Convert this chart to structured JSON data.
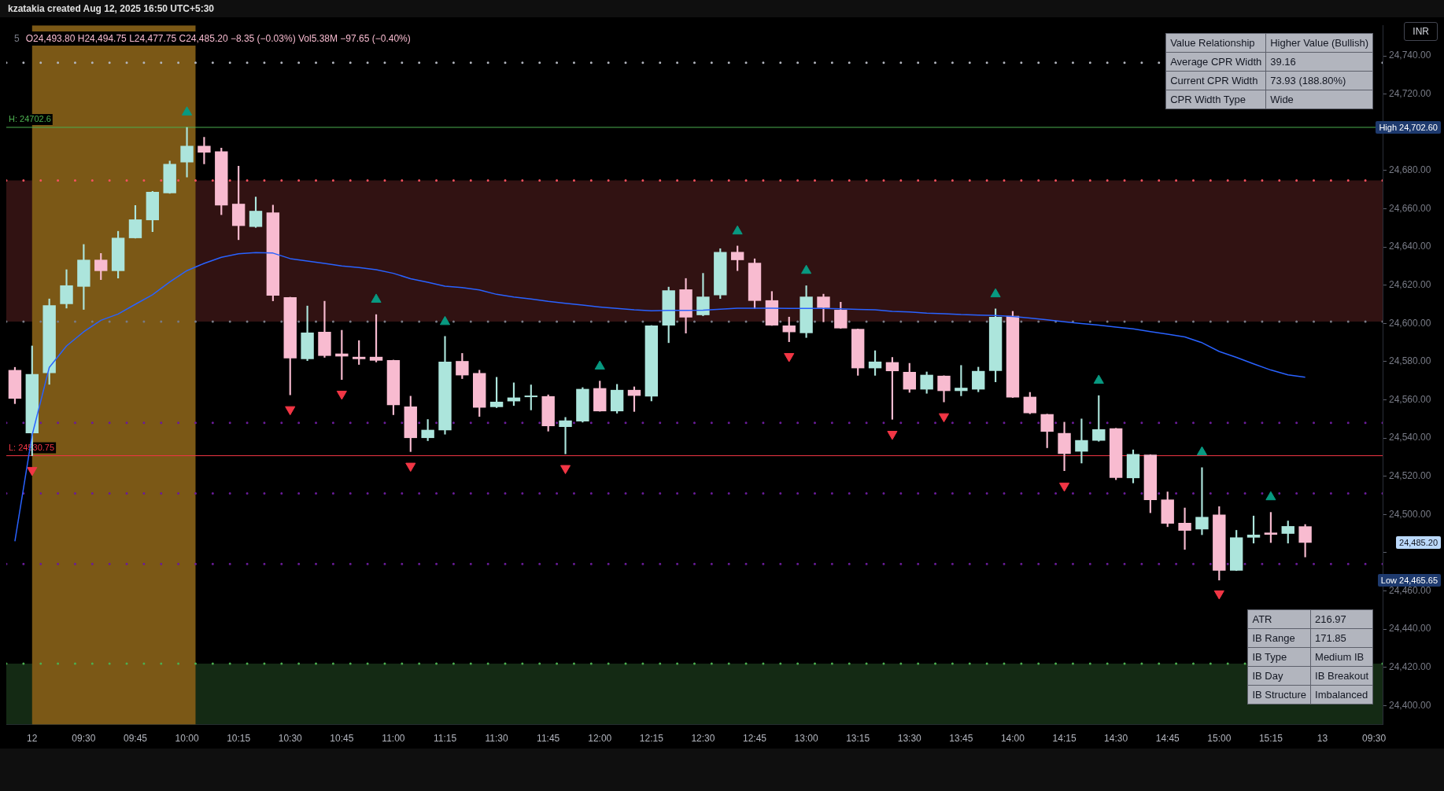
{
  "chart_data": {
    "type": "candlestick",
    "title": "5",
    "subtitle": "O24,493.80 H24,494.75 L24,477.75 C24,485.20 −8.35 (−0.03%) Vol5.38M −97.65 (−0.40%)",
    "categories": [
      null,
      "12",
      null,
      null,
      "09:30",
      null,
      null,
      "09:45",
      null,
      null,
      "10:00",
      null,
      null,
      "10:15",
      null,
      null,
      "10:30",
      null,
      null,
      "10:45",
      null,
      null,
      "11:00",
      null,
      null,
      "11:15",
      null,
      null,
      "11:30",
      null,
      null,
      "11:45",
      null,
      null,
      "12:00",
      null,
      null,
      "12:15",
      null,
      null,
      "12:30",
      null,
      null,
      "12:45",
      null,
      null,
      "13:00",
      null,
      null,
      "13:15",
      null,
      null,
      "13:30",
      null,
      null,
      "13:45",
      null,
      null,
      "14:00",
      null,
      null,
      "14:15",
      null,
      null,
      "14:30",
      null,
      null,
      "14:45",
      null,
      null,
      "15:00",
      null,
      null,
      "15:15",
      null,
      null,
      "13",
      null,
      null,
      "09:30"
    ],
    "ohlc": [
      [
        24575.6,
        24577,
        24558,
        24560.6
      ],
      [
        24542.5,
        24588.2,
        24530.75,
        24573.5
      ],
      [
        24574.0,
        24612.8,
        24568.1,
        24609.5
      ],
      [
        24610.1,
        24628.1,
        24608.0,
        24619.9
      ],
      [
        24619.2,
        24641.3,
        24607.3,
        24633.3
      ],
      [
        24633.3,
        24636.6,
        24622.9,
        24627.4
      ],
      [
        24627.4,
        24648.2,
        24623.7,
        24644.8
      ],
      [
        24644.6,
        24661.7,
        24644.6,
        24654.4
      ],
      [
        24654.0,
        24669.1,
        24648.0,
        24668.8
      ],
      [
        24668.1,
        24685.0,
        24668.1,
        24683.5
      ],
      [
        24684.3,
        24702.6,
        24676.6,
        24692.9
      ],
      [
        24692.9,
        24697.4,
        24683.5,
        24689.4
      ],
      [
        24690.0,
        24691.7,
        24656.9,
        24661.7
      ],
      [
        24662.6,
        24682.3,
        24643.8,
        24651.0
      ],
      [
        24650.5,
        24666.1,
        24650.2,
        24658.9
      ],
      [
        24658.0,
        24661.9,
        24611.8,
        24614.5
      ],
      [
        24613.7,
        24613.7,
        24562.6,
        24581.7
      ],
      [
        24581.3,
        24609.1,
        24580.5,
        24595.2
      ],
      [
        24595.6,
        24611.6,
        24582.2,
        24583.0
      ],
      [
        24584.2,
        24596.4,
        24570.6,
        24582.7
      ],
      [
        24582.5,
        24591.0,
        24578.5,
        24581.3
      ],
      [
        24582.5,
        24604.6,
        24579.8,
        24580.5
      ],
      [
        24580.8,
        24580.8,
        24552.2,
        24557.2
      ],
      [
        24556.5,
        24561.9,
        24532.9,
        24540.0
      ],
      [
        24540.0,
        24549.7,
        24538.6,
        24544.3
      ],
      [
        24544.0,
        24593.2,
        24542.0,
        24580.0
      ],
      [
        24580.3,
        24584.3,
        24571.1,
        24572.8
      ],
      [
        24574.0,
        24575.5,
        24551.3,
        24555.9
      ],
      [
        24556.2,
        24571.8,
        24555.9,
        24559.0
      ],
      [
        24559.2,
        24568.9,
        24557.0,
        24561.2
      ],
      [
        24561.4,
        24567.8,
        24554.7,
        24561.6
      ],
      [
        24561.9,
        24562.6,
        24543.6,
        24546.2
      ],
      [
        24545.8,
        24550.8,
        24531.7,
        24549.2
      ],
      [
        24548.7,
        24566.4,
        24548.3,
        24565.7
      ],
      [
        24566.1,
        24569.8,
        24554.0,
        24554.0
      ],
      [
        24554.0,
        24568.1,
        24553.0,
        24565.2
      ],
      [
        24565.2,
        24566.8,
        24553.9,
        24562.1
      ],
      [
        24561.7,
        24598.9,
        24559.4,
        24598.9
      ],
      [
        24598.9,
        24619.0,
        24589.9,
        24617.3
      ],
      [
        24617.8,
        24623.5,
        24594.9,
        24603.1
      ],
      [
        24604.3,
        24626.2,
        24604.0,
        24614.0
      ],
      [
        24614.7,
        24639.1,
        24613.0,
        24637.4
      ],
      [
        24637.4,
        24640.5,
        24627.6,
        24633.1
      ],
      [
        24631.7,
        24633.8,
        24607.8,
        24611.8
      ],
      [
        24612.1,
        24616.7,
        24598.9,
        24598.9
      ],
      [
        24598.9,
        24603.3,
        24590.4,
        24595.4
      ],
      [
        24594.9,
        24619.7,
        24592.6,
        24614.0
      ],
      [
        24614.0,
        24615.3,
        24600.8,
        24608.1
      ],
      [
        24607.1,
        24611.1,
        24597.4,
        24597.4
      ],
      [
        24597.1,
        24597.1,
        24572.8,
        24576.5
      ],
      [
        24576.5,
        24585.7,
        24572.8,
        24580.0
      ],
      [
        24579.7,
        24582.2,
        24549.8,
        24575.0
      ],
      [
        24574.6,
        24579.1,
        24563.9,
        24565.4
      ],
      [
        24565.4,
        24574.6,
        24563.4,
        24573.1
      ],
      [
        24572.6,
        24572.6,
        24558.9,
        24564.6
      ],
      [
        24564.6,
        24578.0,
        24562.1,
        24566.3
      ],
      [
        24565.4,
        24577.1,
        24564.2,
        24575.1
      ],
      [
        24575.1,
        24607.6,
        24569.4,
        24603.4
      ],
      [
        24603.9,
        24606.3,
        24561.2,
        24561.2
      ],
      [
        24561.6,
        24563.9,
        24552.7,
        24553.0
      ],
      [
        24552.5,
        24552.5,
        24534.9,
        24543.3
      ],
      [
        24542.6,
        24548.3,
        24522.9,
        24531.7
      ],
      [
        24532.9,
        24550.0,
        24526.9,
        24538.9
      ],
      [
        24538.6,
        24562.2,
        24538.3,
        24544.6
      ],
      [
        24545.1,
        24545.1,
        24518.2,
        24519.2
      ],
      [
        24519.0,
        24533.8,
        24516.5,
        24531.6
      ],
      [
        24531.3,
        24531.3,
        24500.9,
        24507.5
      ],
      [
        24507.8,
        24511.8,
        24493.6,
        24495.2
      ],
      [
        24495.6,
        24503.4,
        24481.7,
        24491.5
      ],
      [
        24492.2,
        24524.5,
        24489.4,
        24498.7
      ],
      [
        24499.9,
        24504.1,
        24465.65,
        24470.6
      ],
      [
        24470.6,
        24491.7,
        24470.6,
        24488.0
      ],
      [
        24487.9,
        24499.2,
        24485.0,
        24489.4
      ],
      [
        24490.5,
        24501.1,
        24485.3,
        24489.4
      ],
      [
        24489.9,
        24496.6,
        24485.0,
        24493.9
      ],
      [
        24493.8,
        24494.75,
        24477.75,
        24485.2
      ],
      null,
      null,
      null,
      null
    ],
    "colors": [
      "#f8bbd0",
      "#ace5dc",
      "#ace5dc",
      "#ace5dc",
      "#ace5dc",
      "#f8bbd0",
      "#ace5dc",
      "#ace5dc",
      "#ace5dc",
      "#ace5dc",
      "#ace5dc",
      "#f8bbd0",
      "#f8bbd0",
      "#f8bbd0",
      "#ace5dc",
      "#f8bbd0",
      "#f8bbd0",
      "#ace5dc",
      "#f8bbd0",
      "#f8bbd0",
      "#f8bbd0",
      "#f8bbd0",
      "#f8bbd0",
      "#f8bbd0",
      "#ace5dc",
      "#ace5dc",
      "#f8bbd0",
      "#f8bbd0",
      "#ace5dc",
      "#ace5dc",
      "#ace5dc",
      "#f8bbd0",
      "#ace5dc",
      "#ace5dc",
      "#f8bbd0",
      "#ace5dc",
      "#f8bbd0",
      "#ace5dc",
      "#ace5dc",
      "#f8bbd0",
      "#ace5dc",
      "#ace5dc",
      "#f8bbd0",
      "#f8bbd0",
      "#f8bbd0",
      "#f8bbd0",
      "#ace5dc",
      "#f8bbd0",
      "#f8bbd0",
      "#f8bbd0",
      "#ace5dc",
      "#f8bbd0",
      "#f8bbd0",
      "#ace5dc",
      "#f8bbd0",
      "#ace5dc",
      "#ace5dc",
      "#ace5dc",
      "#f8bbd0",
      "#f8bbd0",
      "#f8bbd0",
      "#f8bbd0",
      "#ace5dc",
      "#ace5dc",
      "#f8bbd0",
      "#ace5dc",
      "#f8bbd0",
      "#f8bbd0",
      "#f8bbd0",
      "#ace5dc",
      "#f8bbd0",
      "#ace5dc",
      "#ace5dc",
      "#f8bbd0",
      "#ace5dc",
      "#f8bbd0",
      null,
      null,
      null,
      null
    ],
    "series": [
      {
        "type": "line",
        "color": "#2962ff",
        "values": [
          24486,
          24541.5,
          24577.0,
          24588.2,
          24595.6,
          24601.6,
          24604.9,
          24610.0,
          24615.0,
          24621.7,
          24627.6,
          24631.4,
          24634.6,
          24636.4,
          24637.1,
          24636.8,
          24633.9,
          24632.6,
          24631.4,
          24630.1,
          24629.2,
          24628.1,
          24626.2,
          24623.4,
          24621.5,
          24619.5,
          24618.7,
          24617.5,
          24615.2,
          24613.8,
          24612.8,
          24611.5,
          24610.5,
          24609.6,
          24608.6,
          24607.8,
          24607.1,
          24606.6,
          24606.8,
          24606.8,
          24606.9,
          24607.4,
          24607.9,
          24607.9,
          24607.9,
          24607.8,
          24607.8,
          24607.8,
          24607.6,
          24607.3,
          24607.1,
          24606.3,
          24606.0,
          24605.4,
          24605.1,
          24604.6,
          24604.3,
          24604.1,
          24603.6,
          24602.8,
          24601.9,
          24600.8,
          24599.9,
          24599.1,
          24598.1,
          24597.1,
          24595.7,
          24594.4,
          24592.9,
          24589.9,
          24585.3,
          24582.2,
          24578.8,
          24575.6,
          24573.1,
          24571.8,
          null,
          null,
          null,
          null
        ]
      },
      {
        "type": "scatter",
        "color": "#089981",
        "marker": "triangle",
        "values": [
          null,
          null,
          null,
          null,
          null,
          null,
          null,
          null,
          null,
          null,
          24710.5,
          null,
          null,
          null,
          null,
          null,
          null,
          null,
          null,
          null,
          null,
          24612.5,
          null,
          null,
          null,
          24600.8,
          null,
          null,
          null,
          null,
          null,
          null,
          null,
          null,
          24577.5,
          null,
          null,
          null,
          null,
          null,
          null,
          null,
          24648.2,
          null,
          null,
          null,
          24627.6,
          null,
          null,
          null,
          null,
          null,
          null,
          null,
          null,
          null,
          null,
          24615.3,
          null,
          null,
          null,
          null,
          null,
          24570.1,
          null,
          null,
          null,
          null,
          null,
          24532.6,
          null,
          null,
          null,
          24509.1,
          null,
          null,
          null,
          null,
          null,
          null
        ]
      },
      {
        "type": "scatter",
        "color": "#f23645",
        "marker": "triangle-down",
        "values": [
          null,
          24523.2,
          null,
          null,
          null,
          null,
          null,
          null,
          null,
          null,
          null,
          null,
          null,
          null,
          null,
          null,
          24555.0,
          null,
          null,
          24563.1,
          null,
          null,
          null,
          24525.4,
          null,
          null,
          null,
          null,
          null,
          null,
          null,
          null,
          24524.2,
          null,
          null,
          null,
          null,
          null,
          null,
          null,
          null,
          null,
          null,
          null,
          null,
          24582.8,
          null,
          null,
          null,
          null,
          null,
          24542.1,
          null,
          null,
          24551.3,
          null,
          null,
          null,
          null,
          null,
          null,
          24515.0,
          null,
          null,
          null,
          null,
          null,
          null,
          null,
          null,
          24458.6,
          null,
          null,
          null,
          null,
          null,
          null,
          null,
          null,
          null
        ]
      }
    ],
    "ylim": [
      24390,
      24756
    ],
    "yticks": [
      {
        "value": 24400,
        "label": "24,400.00"
      },
      {
        "value": 24420,
        "label": "24,420.00"
      },
      {
        "value": 24440,
        "label": "24,440.00"
      },
      {
        "value": 24460,
        "label": "24,460.00"
      },
      {
        "value": 24480,
        "label": null
      },
      {
        "value": 24500,
        "label": "24,500.00"
      },
      {
        "value": 24520,
        "label": "24,520.00"
      },
      {
        "value": 24540,
        "label": "24,540.00"
      },
      {
        "value": 24560,
        "label": "24,560.00"
      },
      {
        "value": 24580,
        "label": "24,580.00"
      },
      {
        "value": 24600,
        "label": "24,600.00"
      },
      {
        "value": 24620,
        "label": "24,620.00"
      },
      {
        "value": 24640,
        "label": "24,640.00"
      },
      {
        "value": 24660,
        "label": "24,660.00"
      },
      {
        "value": 24680,
        "label": "24,680.00"
      },
      {
        "value": 24700,
        "label": null
      },
      {
        "value": 24720,
        "label": "24,720.00"
      },
      {
        "value": 24740,
        "label": "24,740.00"
      }
    ],
    "bands": [
      {
        "axis": "y",
        "from": 24600.9,
        "to": 24674.8,
        "color": "#311212"
      },
      {
        "axis": "y",
        "from": 24390,
        "to": 24421.9,
        "color": "#142a14"
      },
      {
        "axis": "x",
        "from": "12",
        "to": "10:00",
        "color": "#7b5816"
      }
    ],
    "ref_lines": [
      {
        "axis": "y",
        "value": 24702.6,
        "label": "H: 24702.6",
        "color": "#4caf50"
      },
      {
        "axis": "y",
        "value": 24530.75,
        "label": "L: 24530.75",
        "color": "#f23645"
      },
      {
        "axis": "y",
        "value": 24736.4,
        "color": "#b2b5be",
        "line_style": "dotted"
      },
      {
        "axis": "y",
        "value": 24674.8,
        "color": "#f7525f",
        "line_style": "dotted"
      },
      {
        "axis": "y",
        "value": 24600.9,
        "color": "#787b86",
        "line_style": "dotted"
      },
      {
        "axis": "y",
        "value": 24548.0,
        "color": "#6a1b9a",
        "line_style": "dotted"
      },
      {
        "axis": "y",
        "value": 24511.0,
        "color": "#6a1b9a",
        "line_style": "dotted"
      },
      {
        "axis": "y",
        "value": 24474.1,
        "color": "#6a1b9a",
        "line_style": "dotted"
      },
      {
        "axis": "y",
        "value": 24421.9,
        "color": "#4caf50",
        "line_style": "dotted"
      }
    ],
    "annotations": [
      "kzatakia created Aug 12, 2025 16:50 UTC+5:30",
      "INR",
      "Value Relationship",
      "Higher Value (Bullish)",
      "Average CPR Width",
      "39.16",
      "Current CPR Width",
      "73.93 (188.80%)",
      "CPR Width Type",
      "Wide",
      "ATR",
      "216.97",
      "IB Range",
      "171.85",
      "IB Type",
      "Medium IB",
      "IB Day",
      "IB Breakout",
      "IB Structure",
      "Imbalanced",
      "High 24,702.60",
      "Low 24,465.65",
      "24,485.20"
    ]
  }
}
